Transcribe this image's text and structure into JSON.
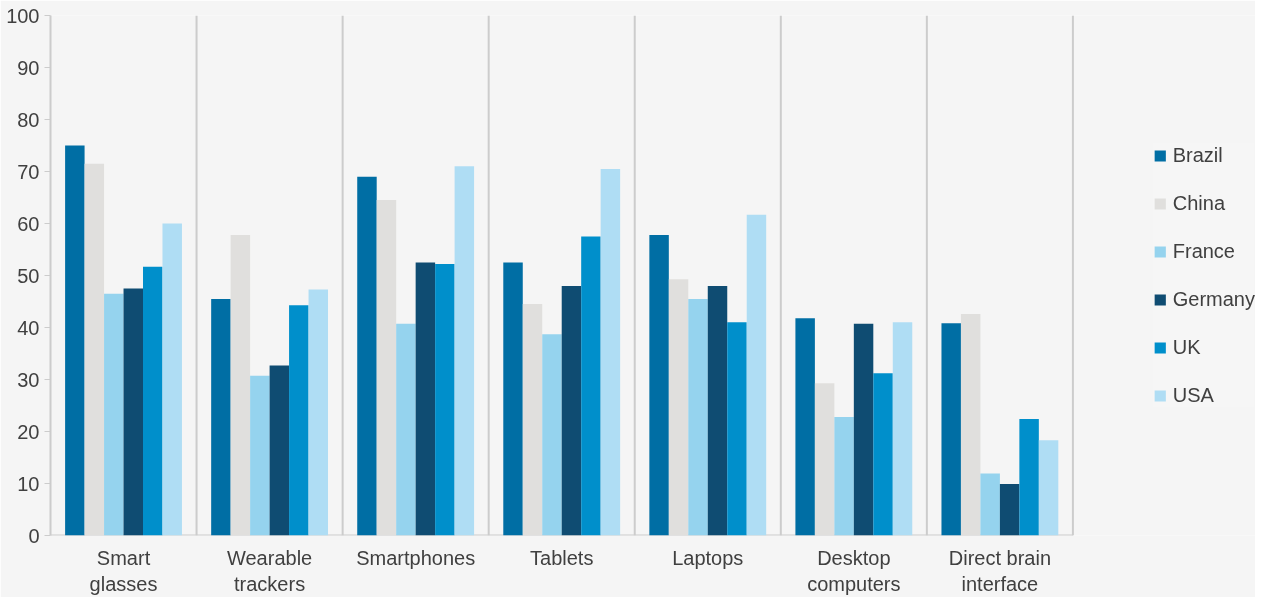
{
  "chart_data": {
    "type": "bar",
    "categories": [
      "Smart glasses",
      "Wearable trackers",
      "Smartphones",
      "Tablets",
      "Laptops",
      "Desktop computers",
      "Direct brain interface"
    ],
    "series": [
      {
        "name": "Brazil",
        "color": "#006ea4",
        "values": [
          75,
          45.5,
          69,
          52.5,
          57.8,
          41.8,
          40.8
        ]
      },
      {
        "name": "China",
        "color": "#e0dfdd",
        "values": [
          71.5,
          57.8,
          64.5,
          44.5,
          49.3,
          29.3,
          42.6
        ]
      },
      {
        "name": "France",
        "color": "#95d3ee",
        "values": [
          46.5,
          30.7,
          40.7,
          38.7,
          45.5,
          22.8,
          11.9
        ]
      },
      {
        "name": "Germany",
        "color": "#0f4c72",
        "values": [
          47.5,
          32.7,
          52.5,
          48,
          48,
          40.7,
          9.9
        ]
      },
      {
        "name": "UK",
        "color": "#008fcb",
        "values": [
          51.7,
          44.3,
          52.2,
          57.5,
          41,
          31.2,
          22.4
        ]
      },
      {
        "name": "USA",
        "color": "#afddf4",
        "values": [
          60,
          47.3,
          71,
          70.5,
          61.7,
          41,
          18.3
        ]
      }
    ],
    "ylim": [
      0,
      100
    ],
    "yticks": [
      0,
      10,
      20,
      30,
      40,
      50,
      60,
      70,
      80,
      90,
      100
    ],
    "grid": "x",
    "legend": "right"
  }
}
